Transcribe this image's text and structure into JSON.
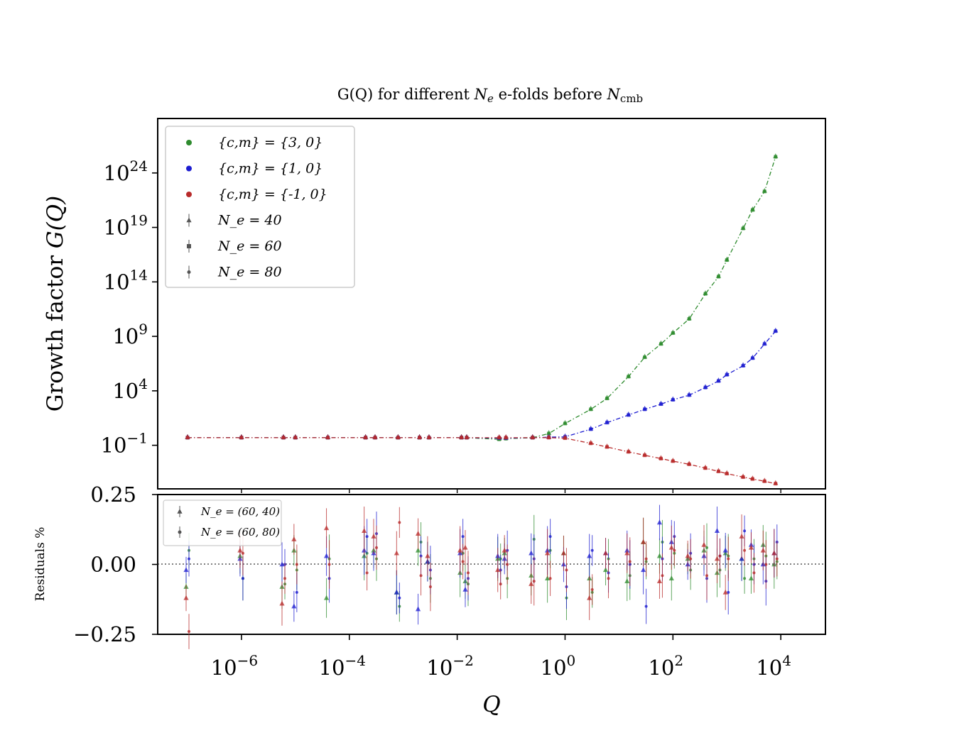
{
  "figure": {
    "title_prefix": "G(Q) for different ",
    "title_ne": "N",
    "title_ne_sub": "e",
    "title_mid": " e-folds before ",
    "title_ncmb": "N",
    "title_ncmb_sub": "cmb"
  },
  "colors": {
    "green": "#2e8b2e",
    "blue": "#1c1cd0",
    "red": "#b82a2a",
    "gray": "#555555"
  },
  "chart_data": [
    {
      "type": "scatter",
      "role": "main",
      "xlabel": "Q",
      "ylabel_text": "Growth factor ",
      "ylabel_math": "G(Q)",
      "x_scale": "log",
      "y_scale": "log",
      "xlim": [
        1e-07,
        20000.0
      ],
      "ylim_exp": [
        -5,
        29
      ],
      "x_ticks": [
        {
          "exp": "-6",
          "value": 1e-06
        },
        {
          "exp": "-4",
          "value": 0.0001
        },
        {
          "exp": "-2",
          "value": 0.01
        },
        {
          "exp": "0",
          "value": 1
        },
        {
          "exp": "2",
          "value": 100
        },
        {
          "exp": "4",
          "value": 10000
        }
      ],
      "y_ticks": [
        {
          "exp": "24",
          "value": 1e+24
        },
        {
          "exp": "19",
          "value": 1e+19
        },
        {
          "exp": "14",
          "value": 100000000000000.0
        },
        {
          "exp": "9",
          "value": 1000000000.0
        },
        {
          "exp": "4",
          "value": 10000.0
        },
        {
          "exp": "−1",
          "value": 0.1
        }
      ],
      "grid": false,
      "legend_position": "top-left",
      "legend": [
        {
          "marker": "dot",
          "color_key": "green",
          "text": "{c,m} = {3, 0}"
        },
        {
          "marker": "dot",
          "color_key": "blue",
          "text": "{c,m} = {1, 0}"
        },
        {
          "marker": "dot",
          "color_key": "red",
          "text": "{c,m} = {-1, 0}"
        },
        {
          "marker": "triangle",
          "color_key": "gray",
          "text": "N_e = 40"
        },
        {
          "marker": "square",
          "color_key": "gray",
          "text": "N_e = 60"
        },
        {
          "marker": "circle",
          "color_key": "gray",
          "text": "N_e = 80"
        }
      ],
      "series": [
        {
          "name": "{c,m} = {3, 0}",
          "color_key": "green",
          "x": [
            1e-07,
            1e-06,
            6e-06,
            1e-05,
            4e-05,
            0.0002,
            0.0003,
            0.0008,
            0.002,
            0.003,
            0.012,
            0.015,
            0.06,
            0.08,
            0.25,
            0.5,
            1,
            3,
            6,
            15,
            30,
            60,
            100,
            200,
            400,
            700,
            1000,
            2000,
            3000,
            5000,
            8000
          ],
          "y": [
            0.5,
            0.5,
            0.5,
            0.5,
            0.5,
            0.5,
            0.5,
            0.5,
            0.5,
            0.5,
            0.5,
            0.5,
            0.35,
            0.4,
            0.5,
            1.2,
            10,
            200,
            2000,
            200000.0,
            12000000.0,
            200000000.0,
            2000000000.0,
            40000000000.0,
            8000000000000.0,
            300000000000000.0,
            1e+16,
            8e+18,
            4e+20,
            2e+22,
            3e+25
          ]
        },
        {
          "name": "{c,m} = {1, 0}",
          "color_key": "blue",
          "x": [
            1e-07,
            1e-06,
            6e-06,
            1e-05,
            4e-05,
            0.0002,
            0.0003,
            0.0008,
            0.002,
            0.003,
            0.012,
            0.015,
            0.06,
            0.08,
            0.25,
            0.5,
            1,
            3,
            6,
            15,
            30,
            60,
            100,
            200,
            400,
            700,
            1000,
            2000,
            3000,
            5000,
            8000
          ],
          "y": [
            0.5,
            0.5,
            0.5,
            0.5,
            0.5,
            0.5,
            0.5,
            0.5,
            0.5,
            0.5,
            0.5,
            0.5,
            0.45,
            0.45,
            0.5,
            0.55,
            0.6,
            3,
            12,
            60,
            200,
            600,
            1500,
            4000,
            20000.0,
            80000.0,
            300000.0,
            2000000.0,
            10000000.0,
            200000000.0,
            3000000000.0
          ]
        },
        {
          "name": "{c,m} = {-1, 0}",
          "color_key": "red",
          "x": [
            1e-07,
            1e-06,
            6e-06,
            1e-05,
            4e-05,
            0.0002,
            0.0003,
            0.0008,
            0.002,
            0.003,
            0.012,
            0.015,
            0.06,
            0.08,
            0.25,
            0.5,
            1,
            3,
            6,
            15,
            30,
            60,
            100,
            200,
            400,
            700,
            1000,
            2000,
            3000,
            5000,
            8000
          ],
          "y": [
            0.5,
            0.5,
            0.5,
            0.5,
            0.5,
            0.5,
            0.5,
            0.5,
            0.5,
            0.5,
            0.5,
            0.5,
            0.5,
            0.5,
            0.5,
            0.5,
            0.45,
            0.15,
            0.07,
            0.025,
            0.012,
            0.006,
            0.0035,
            0.0018,
            0.0008,
            0.0004,
            0.00025,
            0.00012,
            8e-05,
            5e-05,
            3e-05
          ]
        }
      ]
    },
    {
      "type": "scatter",
      "role": "residuals",
      "ylabel": "Residuals %",
      "x_scale": "log",
      "xlim": [
        1e-07,
        20000.0
      ],
      "ylim": [
        -0.25,
        0.25
      ],
      "y_ticks": [
        {
          "label": "0.25",
          "value": 0.25
        },
        {
          "label": "0.00",
          "value": 0
        },
        {
          "label": "−0.25",
          "value": -0.25
        }
      ],
      "reference_line": 0,
      "legend_position": "top-left",
      "legend": [
        {
          "marker": "triangle",
          "color_key": "gray",
          "text": "N_e = (60, 40)"
        },
        {
          "marker": "circle",
          "color_key": "gray",
          "text": "N_e = (60, 80)"
        }
      ],
      "series": [
        {
          "name": "{c,m} = {3, 0}",
          "color_key": "green",
          "x": [
            1e-07,
            1e-06,
            6e-06,
            1e-05,
            4e-05,
            0.0002,
            0.0003,
            0.0008,
            0.002,
            0.003,
            0.012,
            0.015,
            0.06,
            0.08,
            0.25,
            0.5,
            1,
            3,
            6,
            15,
            30,
            60,
            100,
            200,
            400,
            700,
            1000,
            2000,
            3000,
            5000,
            8000
          ],
          "tri": [
            -0.08,
            0.03,
            -0.08,
            0.05,
            -0.12,
            0.03,
            0.05,
            -0.1,
            0.05,
            0.01,
            -0.03,
            -0.06,
            0.02,
            0.04,
            -0.04,
            -0.05,
            0.04,
            -0.05,
            -0.02,
            -0.06,
            0.08,
            0.03,
            -0.05,
            0.02,
            0.05,
            -0.03,
            0.04,
            0.02,
            -0.05,
            0.07,
            0.0
          ],
          "dot": [
            0.05,
            -0.05,
            -0.07,
            -0.02,
            0.02,
            0.04,
            0.02,
            -0.15,
            0.08,
            -0.05,
            0.04,
            -0.07,
            0.02,
            -0.05,
            0.09,
            0.05,
            -0.12,
            -0.1,
            0.02,
            -0.04,
            0.01,
            0.08,
            0.04,
            -0.02,
            0.06,
            -0.02,
            0.03,
            -0.05,
            0.02,
            0.03,
            0.01
          ]
        },
        {
          "name": "{c,m} = {1, 0}",
          "color_key": "blue",
          "x": [
            1e-07,
            1e-06,
            6e-06,
            1e-05,
            4e-05,
            0.0002,
            0.0003,
            0.0008,
            0.002,
            0.003,
            0.012,
            0.015,
            0.06,
            0.08,
            0.25,
            0.5,
            1,
            3,
            6,
            15,
            30,
            60,
            100,
            200,
            400,
            700,
            1000,
            2000,
            3000,
            5000,
            8000
          ],
          "tri": [
            -0.02,
            0.02,
            0.0,
            -0.15,
            0.03,
            0.05,
            0.04,
            -0.1,
            -0.16,
            0.01,
            0.04,
            -0.09,
            0.03,
            0.02,
            0.04,
            0.05,
            0.0,
            0.03,
            0.04,
            0.05,
            -0.02,
            0.15,
            0.08,
            0.0,
            0.03,
            0.12,
            0.05,
            0.02,
            0.07,
            0.0,
            0.04
          ],
          "dot": [
            0.02,
            -0.05,
            0.0,
            -0.1,
            -0.05,
            0.1,
            0.11,
            -0.12,
            0.03,
            -0.02,
            0.1,
            -0.05,
            -0.02,
            0.05,
            0.02,
            0.1,
            -0.08,
            0.05,
            -0.03,
            0.0,
            -0.15,
            0.02,
            0.1,
            0.04,
            -0.05,
            0.03,
            -0.1,
            0.12,
            0.0,
            -0.06,
            0.08
          ]
        },
        {
          "name": "{c,m} = {-1, 0}",
          "color_key": "red",
          "x": [
            1e-07,
            1e-06,
            6e-06,
            1e-05,
            4e-05,
            0.0002,
            0.0003,
            0.0008,
            0.002,
            0.003,
            0.012,
            0.015,
            0.06,
            0.08,
            0.25,
            0.5,
            1,
            3,
            6,
            15,
            30,
            60,
            100,
            200,
            400,
            700,
            1000,
            2000,
            3000,
            5000,
            8000
          ],
          "tri": [
            -0.12,
            0.05,
            -0.14,
            0.09,
            0.13,
            0.12,
            0.1,
            0.04,
            0.11,
            0.03,
            0.05,
            0.06,
            -0.02,
            0.05,
            -0.07,
            0.04,
            0.04,
            -0.12,
            0.04,
            0.04,
            0.08,
            -0.06,
            0.06,
            0.03,
            0.07,
            0.02,
            -0.1,
            0.1,
            0.06,
            0.05,
            0.04
          ],
          "dot": [
            -0.24,
            0.04,
            -0.05,
            0.0,
            0.0,
            -0.03,
            0.06,
            0.15,
            -0.04,
            -0.08,
            0.01,
            -0.03,
            -0.07,
            0.0,
            -0.06,
            -0.05,
            -0.02,
            -0.09,
            -0.05,
            0.01,
            0.02,
            -0.04,
            0.05,
            0.02,
            -0.04,
            0.03,
            0.02,
            0.05,
            -0.03,
            0.0,
            0.02
          ]
        }
      ]
    }
  ]
}
